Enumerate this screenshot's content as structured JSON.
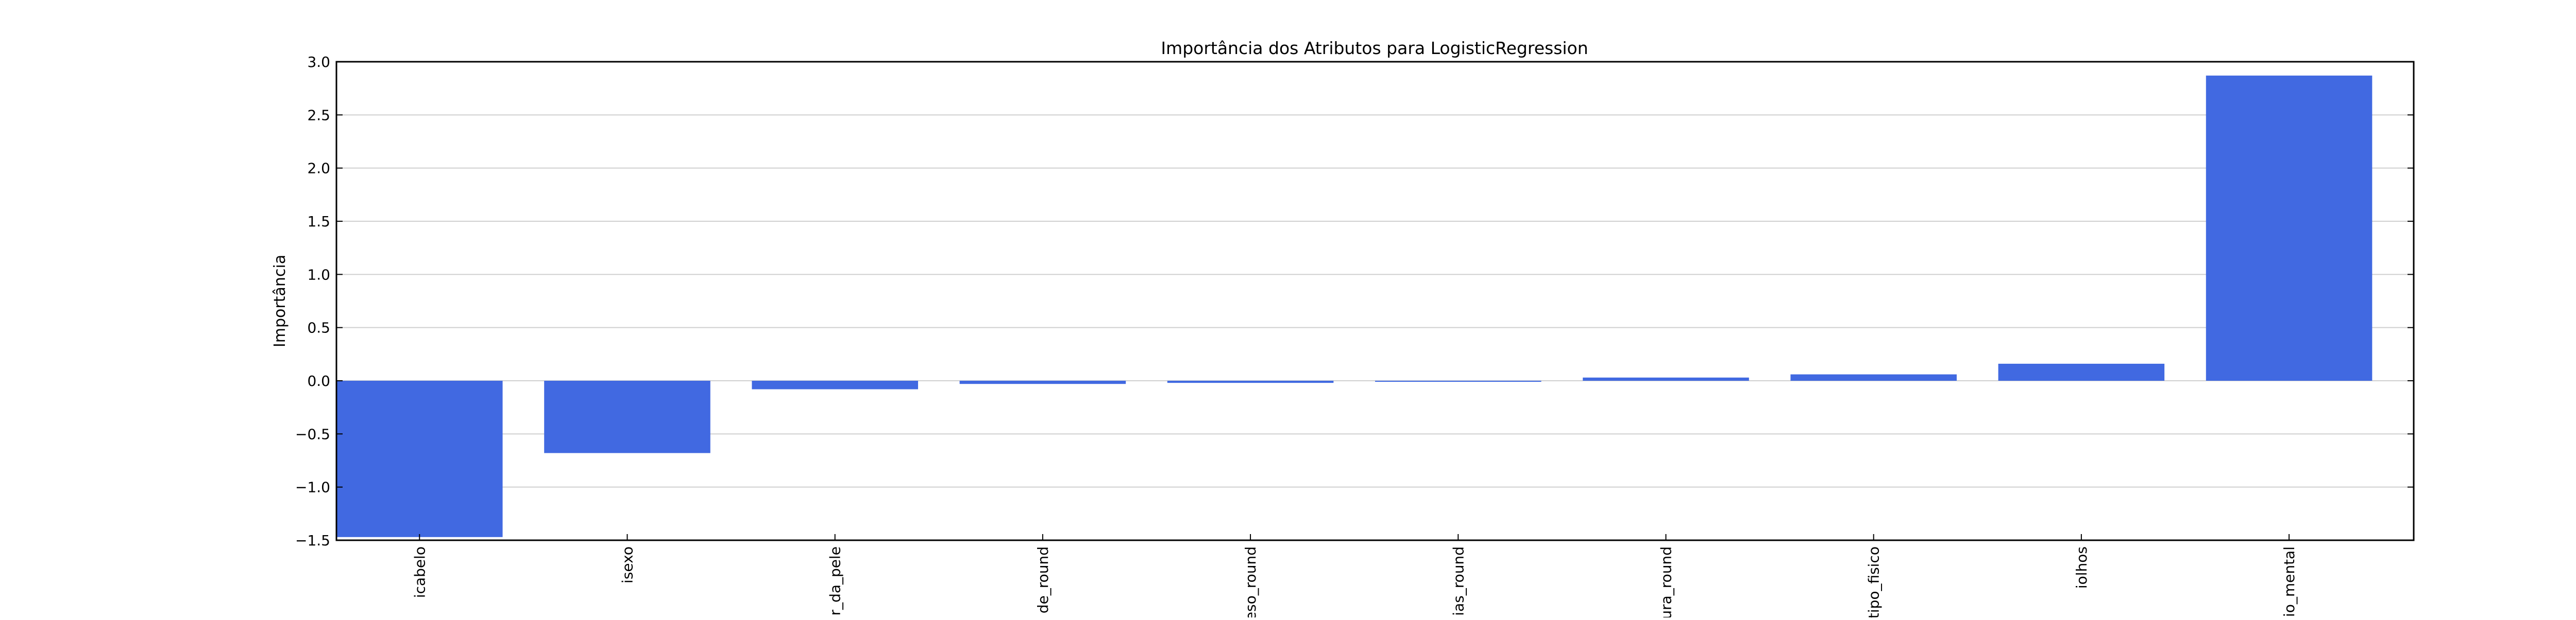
{
  "chart_data": {
    "type": "bar",
    "title": "Importância dos Atributos para LogisticRegression",
    "xlabel": "",
    "ylabel": "Importância",
    "ylim": [
      -1.5,
      3.0
    ],
    "yticks": [
      "−1.5",
      "−1.0",
      "−0.5",
      "0.0",
      "0.5",
      "1.0",
      "1.5",
      "2.0",
      "2.5",
      "3.0"
    ],
    "ytick_values": [
      -1.5,
      -1.0,
      -0.5,
      0.0,
      0.5,
      1.0,
      1.5,
      2.0,
      2.5,
      3.0
    ],
    "grid": "horizontal",
    "bar_color": "#4169E1",
    "categories": [
      "icabelo",
      "isexo",
      "r_da_pele",
      "de_round",
      "eso_round",
      "ias_round",
      "ura_round",
      "tipo_fisico",
      "iolhos",
      "io_mental"
    ],
    "values": [
      -1.47,
      -0.68,
      -0.08,
      -0.03,
      -0.02,
      -0.01,
      0.03,
      0.06,
      0.16,
      2.87
    ]
  }
}
